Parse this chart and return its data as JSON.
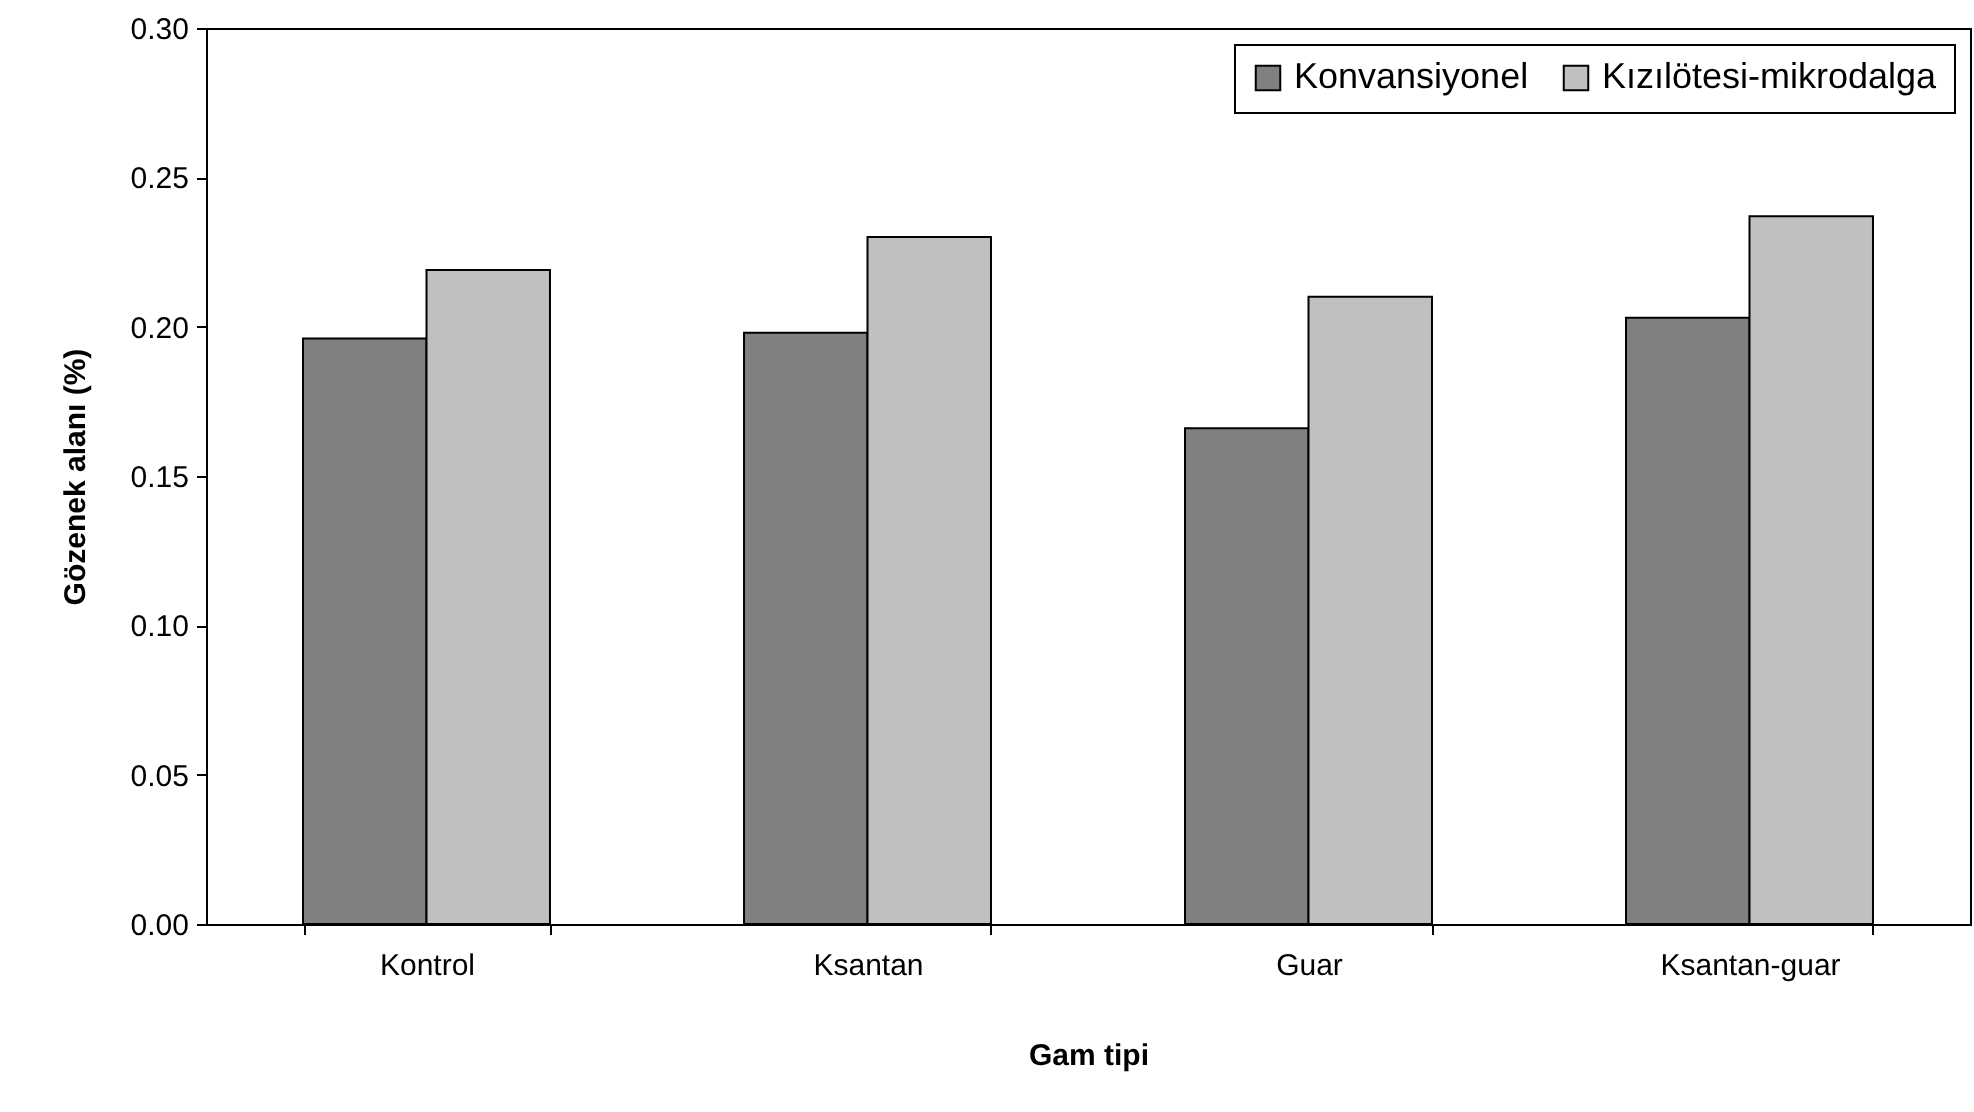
{
  "chart_data": {
    "type": "bar",
    "xlabel": "Gam tipi",
    "ylabel": "Gözenek alanı  (%)",
    "categories": [
      "Kontrol",
      "Ksantan",
      "Guar",
      "Ksantan-guar"
    ],
    "series": [
      {
        "name": "Konvansiyonel",
        "color": "#808080",
        "values": [
          0.196,
          0.198,
          0.166,
          0.203
        ]
      },
      {
        "name": "Kızılötesi-mikrodalga",
        "color": "#c0c0c0",
        "values": [
          0.219,
          0.23,
          0.21,
          0.237
        ]
      }
    ],
    "ylim": [
      0,
      0.3
    ],
    "yticks": [
      {
        "value": 0,
        "label": "0.00"
      },
      {
        "value": 0.05,
        "label": "0.05"
      },
      {
        "value": 0.1,
        "label": "0.10"
      },
      {
        "value": 0.15,
        "label": "0.15"
      },
      {
        "value": 0.2,
        "label": "0.20"
      },
      {
        "value": 0.25,
        "label": "0.25"
      },
      {
        "value": 0.3,
        "label": "0.30"
      }
    ],
    "grid": false,
    "legend": "top right"
  }
}
